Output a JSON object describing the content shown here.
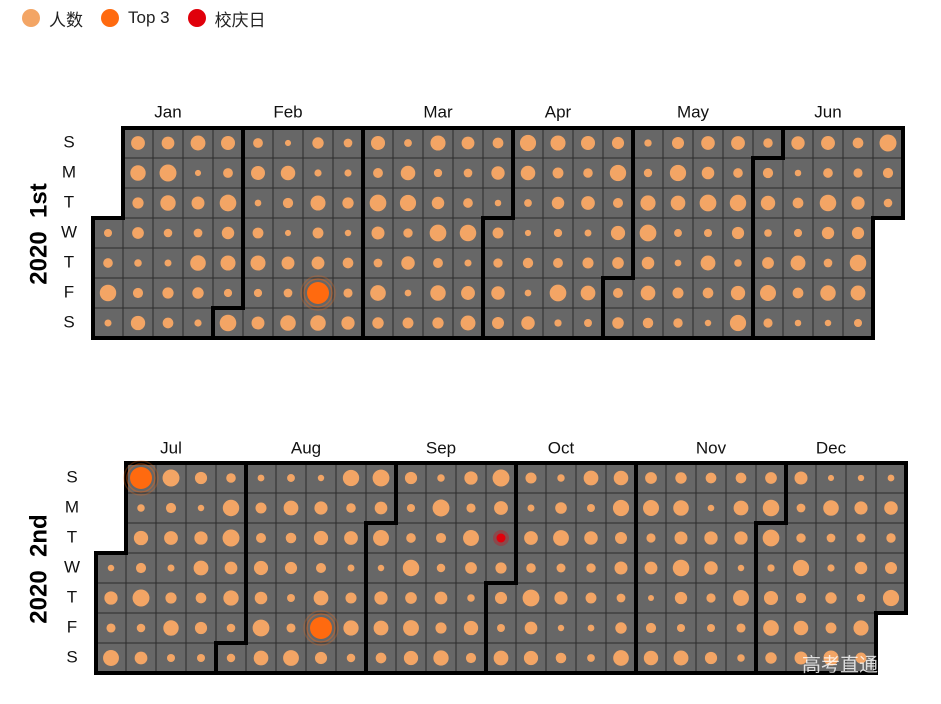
{
  "legend": [
    {
      "label": "人数",
      "color": "#f3a565"
    },
    {
      "label": "Top 3",
      "color": "#ff6a0f"
    },
    {
      "label": "校庆日",
      "color": "#e0000b"
    }
  ],
  "watermark": "高考直通车",
  "chart_data": {
    "type": "calendar-heatmap",
    "day_labels": [
      "S",
      "M",
      "T",
      "W",
      "T",
      "F",
      "S"
    ],
    "cell_color": "#676767",
    "calendars": [
      {
        "title": "2020  1st",
        "months": [
          "Jan",
          "Feb",
          "Mar",
          "Apr",
          "May",
          "Jun"
        ],
        "range": [
          "2020-01-01",
          "2020-06-30"
        ]
      },
      {
        "title": "2020  2nd",
        "months": [
          "Jul",
          "Aug",
          "Sep",
          "Oct",
          "Nov",
          "Dec"
        ],
        "range": [
          "2020-07-01",
          "2020-12-31"
        ]
      }
    ],
    "highlights": [
      {
        "date": "2020-02-21",
        "category": "Top 3"
      },
      {
        "date": "2020-07-05",
        "category": "Top 3"
      },
      {
        "date": "2020-08-21",
        "category": "Top 3"
      },
      {
        "date": "2020-09-29",
        "category": "校庆日"
      }
    ]
  }
}
